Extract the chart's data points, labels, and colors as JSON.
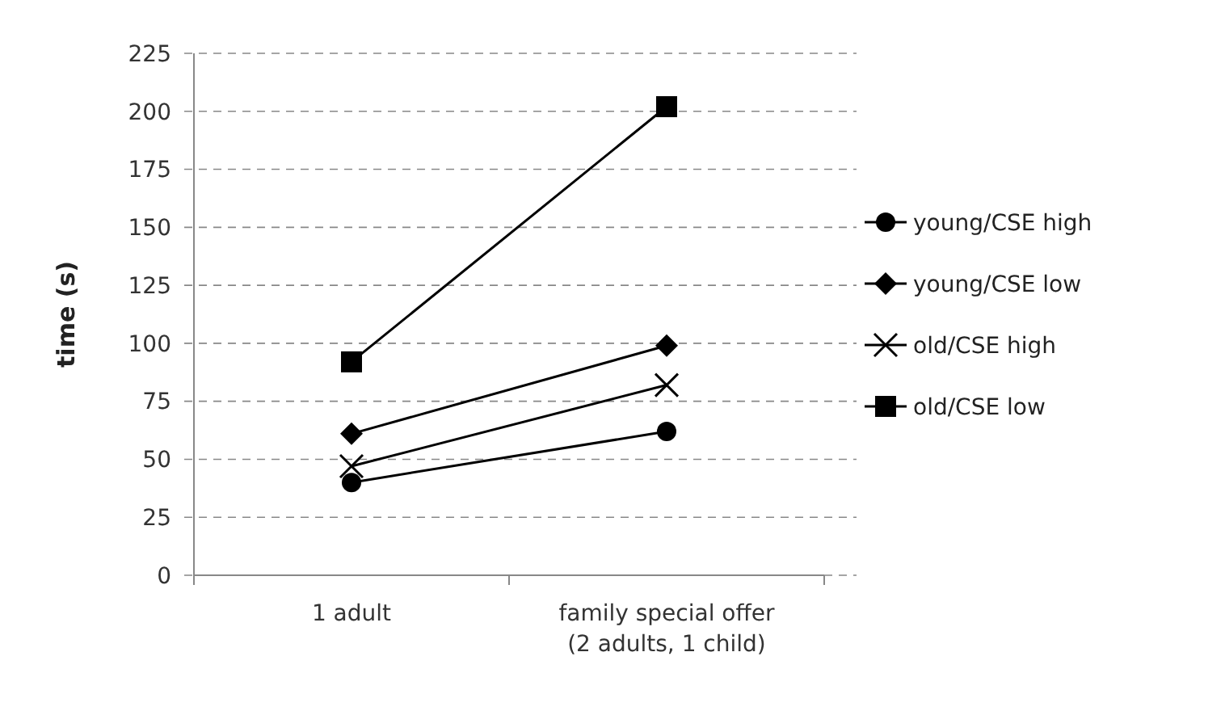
{
  "chart_data": {
    "type": "line",
    "ylabel": "time (s)",
    "categories": [
      "1 adult",
      "family special offer\n(2 adults, 1 child)"
    ],
    "series": [
      {
        "name": "young/CSE high",
        "color": "#000000",
        "marker": "circle",
        "values": [
          40,
          62
        ]
      },
      {
        "name": "young/CSE low",
        "color": "#000000",
        "marker": "diamond",
        "values": [
          61,
          99
        ]
      },
      {
        "name": "old/CSE high",
        "color": "#000000",
        "marker": "cross",
        "values": [
          47,
          82
        ]
      },
      {
        "name": "old/CSE low",
        "color": "#000000",
        "marker": "square",
        "values": [
          92,
          202
        ]
      }
    ],
    "ylim": [
      0,
      225
    ],
    "yticks": [
      0,
      25,
      50,
      75,
      100,
      125,
      150,
      175,
      200,
      225
    ],
    "grid": "y",
    "legend": "right",
    "line_style": "solid"
  }
}
